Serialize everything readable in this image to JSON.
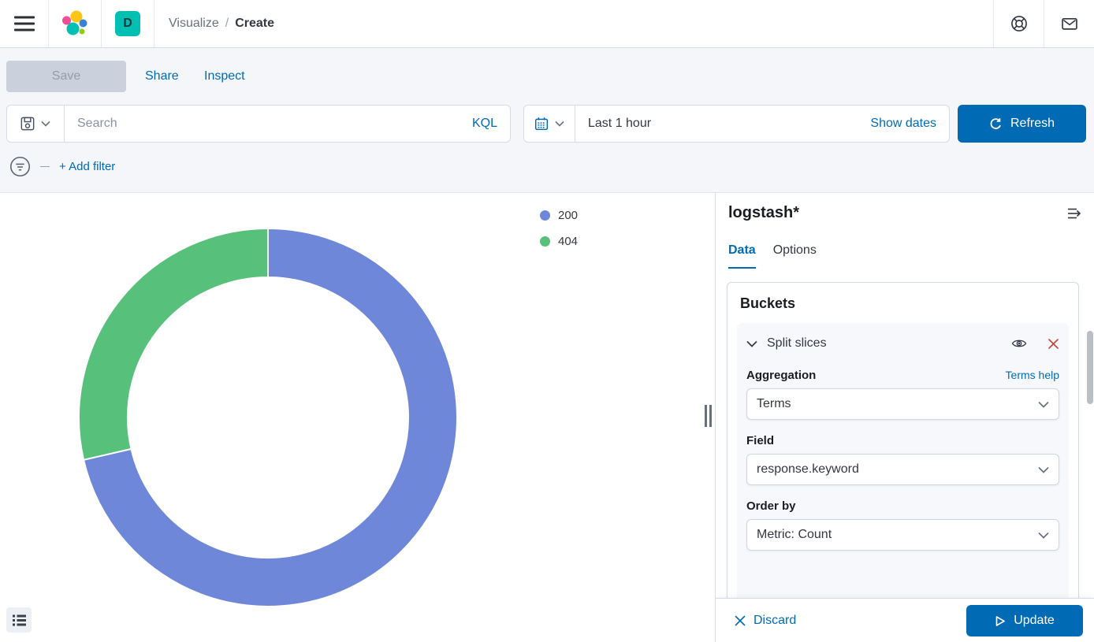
{
  "header": {
    "breadcrumb": {
      "section": "Visualize",
      "separator": "/",
      "page": "Create"
    },
    "space_badge": "D"
  },
  "toolbar": {
    "save_label": "Save",
    "share_label": "Share",
    "inspect_label": "Inspect"
  },
  "query_bar": {
    "search_placeholder": "Search",
    "kql_label": "KQL",
    "time_range": "Last 1 hour",
    "show_dates_label": "Show dates",
    "refresh_label": "Refresh",
    "add_filter_label": "+ Add filter"
  },
  "chart_data": {
    "type": "pie",
    "subtype": "donut",
    "title": "",
    "categories": [
      "200",
      "404"
    ],
    "values": [
      71.4,
      28.6
    ],
    "unit": "percent-of-ring",
    "colors": [
      "#6F87D8",
      "#57C17B"
    ],
    "start_angle_deg": 0,
    "inner_radius_ratio": 0.74,
    "legend_position": "right",
    "grid": false
  },
  "panel": {
    "title": "logstash*",
    "tabs": [
      {
        "label": "Data",
        "active": true
      },
      {
        "label": "Options",
        "active": false
      }
    ],
    "buckets": {
      "title": "Buckets",
      "accordion_label": "Split slices",
      "fields": [
        {
          "label": "Aggregation",
          "value": "Terms",
          "help": "Terms help"
        },
        {
          "label": "Field",
          "value": "response.keyword"
        },
        {
          "label": "Order by",
          "value": "Metric: Count"
        }
      ]
    },
    "footer": {
      "discard_label": "Discard",
      "update_label": "Update"
    }
  },
  "colors": {
    "accent": "#006BB4",
    "danger_icon": "#C8473E",
    "badge": "#00BFB3",
    "slice_200": "#6F87D8",
    "slice_404": "#57C17B"
  }
}
